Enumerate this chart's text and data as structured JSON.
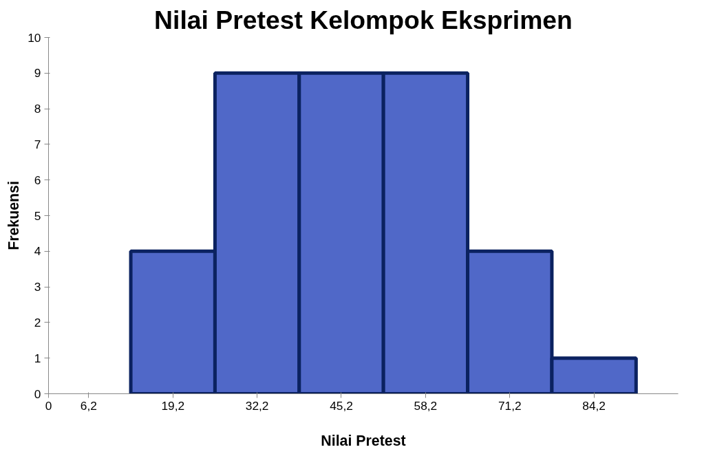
{
  "chart_data": {
    "type": "histogram",
    "title": "Nilai Pretest Kelompok Eksprimen",
    "xlabel": "Nilai Pretest",
    "ylabel": "Frekuensi",
    "bins": [
      12.7,
      25.7,
      38.7,
      51.7,
      64.7,
      77.7,
      90.7
    ],
    "values": [
      4,
      9,
      9,
      9,
      4,
      1
    ],
    "color": "#5068c8",
    "xlim": [
      0,
      97.2
    ],
    "xticks": [
      0,
      {
        "value": 6.2,
        "label": "6,2"
      },
      {
        "value": 19.2,
        "label": "19,2"
      },
      {
        "value": 32.2,
        "label": "32,2"
      },
      {
        "value": 45.2,
        "label": "45,2"
      },
      {
        "value": 58.2,
        "label": "58,2"
      },
      {
        "value": 71.2,
        "label": "71,2"
      },
      {
        "value": 84.2,
        "label": "84,2"
      }
    ],
    "ylim": [
      0,
      10
    ],
    "yticks": [
      0,
      1,
      2,
      3,
      4,
      5,
      6,
      7,
      8,
      9,
      10
    ],
    "grid": false
  }
}
